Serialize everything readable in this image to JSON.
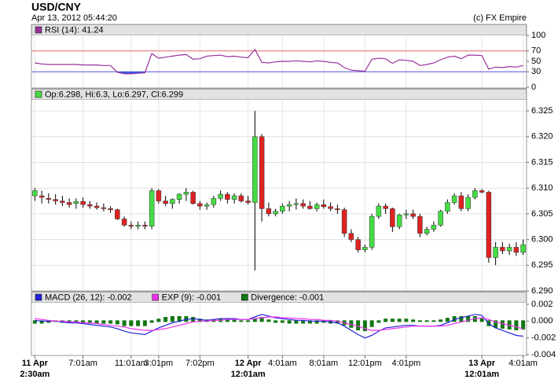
{
  "header": {
    "title": "USD/CNY",
    "subtitle": "Apr 13, 2012 05:44:20",
    "credit": "(c) FX Empire"
  },
  "chart_data": [
    {
      "type": "line",
      "series": [
        {
          "name": "RSI (14): 41.24",
          "color": "#993399",
          "values": [
            47,
            45,
            44,
            44,
            44,
            44,
            44,
            43,
            43,
            43,
            42,
            42,
            29,
            26,
            26,
            27,
            28,
            65,
            56,
            58,
            60,
            62,
            63,
            54,
            55,
            60,
            61,
            62,
            59,
            60,
            58,
            57,
            73,
            48,
            47,
            49,
            50,
            50,
            51,
            50,
            49,
            51,
            50,
            48,
            47,
            38,
            33,
            32,
            31,
            54,
            56,
            55,
            46,
            53,
            52,
            50,
            42,
            44,
            47,
            53,
            58,
            60,
            55,
            62,
            62,
            61,
            35,
            39,
            38,
            40,
            39,
            42
          ]
        }
      ],
      "ylim": [
        0,
        100
      ],
      "yticks": [
        0,
        30,
        50,
        70,
        100
      ],
      "ref_lines": [
        {
          "value": 70,
          "color": "#e06666"
        },
        {
          "value": 30,
          "color": "#5555dd",
          "fill": "#3355ee"
        }
      ]
    },
    {
      "type": "candlestick",
      "series": [
        {
          "name": "Op:6.298, Hi:6.3, Lo:6.297, Cl:6.299",
          "color": "#44dd44",
          "values": [
            [
              6.3085,
              6.31,
              6.3075,
              6.3095
            ],
            [
              6.3085,
              6.3095,
              6.307,
              6.3082
            ],
            [
              6.308,
              6.309,
              6.307,
              6.3078
            ],
            [
              6.3078,
              6.3088,
              6.3068,
              6.3075
            ],
            [
              6.3075,
              6.3085,
              6.3065,
              6.3072
            ],
            [
              6.3072,
              6.308,
              6.3062,
              6.3068
            ],
            [
              6.307,
              6.308,
              6.306,
              6.3074
            ],
            [
              6.3074,
              6.3082,
              6.3062,
              6.3068
            ],
            [
              6.3068,
              6.3075,
              6.306,
              6.3065
            ],
            [
              6.3065,
              6.3072,
              6.3058,
              6.3062
            ],
            [
              6.3062,
              6.307,
              6.3055,
              6.306
            ],
            [
              6.306,
              6.3065,
              6.3052,
              6.3058
            ],
            [
              6.3058,
              6.306,
              6.3038,
              6.304
            ],
            [
              6.304,
              6.3045,
              6.3025,
              6.3028
            ],
            [
              6.3028,
              6.3035,
              6.302,
              6.3026
            ],
            [
              6.3026,
              6.3035,
              6.302,
              6.3028
            ],
            [
              6.3028,
              6.3035,
              6.302,
              6.3026
            ],
            [
              6.3026,
              6.31,
              6.302,
              6.3095
            ],
            [
              6.3095,
              6.3098,
              6.307,
              6.3075
            ],
            [
              6.3075,
              6.3085,
              6.3065,
              6.307
            ],
            [
              6.307,
              6.308,
              6.306,
              6.3078
            ],
            [
              6.3078,
              6.309,
              6.307,
              6.3088
            ],
            [
              6.3088,
              6.31,
              6.3075,
              6.3092
            ],
            [
              6.3092,
              6.3095,
              6.3068,
              6.307
            ],
            [
              6.307,
              6.3075,
              6.3058,
              6.3065
            ],
            [
              6.3065,
              6.3072,
              6.3058,
              6.3068
            ],
            [
              6.3068,
              6.3085,
              6.3062,
              6.308
            ],
            [
              6.308,
              6.3095,
              6.3075,
              6.3088
            ],
            [
              6.3088,
              6.3092,
              6.307,
              6.3078
            ],
            [
              6.3078,
              6.309,
              6.307,
              6.3085
            ],
            [
              6.3085,
              6.309,
              6.3072,
              6.3075
            ],
            [
              6.3075,
              6.3085,
              6.3068,
              6.3072
            ],
            [
              6.3072,
              6.325,
              6.294,
              6.32
            ],
            [
              6.32,
              6.3205,
              6.3035,
              6.306
            ],
            [
              6.306,
              6.3072,
              6.3045,
              6.305
            ],
            [
              6.305,
              6.306,
              6.3045,
              6.3055
            ],
            [
              6.3055,
              6.307,
              6.305,
              6.3065
            ],
            [
              6.3065,
              6.3075,
              6.3055,
              6.3068
            ],
            [
              6.3068,
              6.308,
              6.3058,
              6.307
            ],
            [
              6.307,
              6.3078,
              6.306,
              6.3065
            ],
            [
              6.3065,
              6.3075,
              6.3058,
              6.306
            ],
            [
              6.306,
              6.3072,
              6.3055,
              6.3068
            ],
            [
              6.3068,
              6.3078,
              6.306,
              6.3064
            ],
            [
              6.3064,
              6.3072,
              6.3055,
              6.306
            ],
            [
              6.306,
              6.3068,
              6.305,
              6.3058
            ],
            [
              6.3058,
              6.3062,
              6.3005,
              6.3012
            ],
            [
              6.3012,
              6.302,
              6.2995,
              6.3
            ],
            [
              6.3,
              6.3005,
              6.2975,
              6.298
            ],
            [
              6.298,
              6.299,
              6.2975,
              6.2985
            ],
            [
              6.2985,
              6.305,
              6.298,
              6.3045
            ],
            [
              6.3045,
              6.307,
              6.304,
              6.3065
            ],
            [
              6.3065,
              6.307,
              6.305,
              6.306
            ],
            [
              6.306,
              6.3062,
              6.3015,
              6.3025
            ],
            [
              6.3025,
              6.305,
              6.302,
              6.3048
            ],
            [
              6.3048,
              6.3058,
              6.304,
              6.305
            ],
            [
              6.305,
              6.3058,
              6.304,
              6.3045
            ],
            [
              6.3045,
              6.305,
              6.3005,
              6.3012
            ],
            [
              6.3012,
              6.3025,
              6.3008,
              6.302
            ],
            [
              6.302,
              6.3035,
              6.3015,
              6.3028
            ],
            [
              6.3028,
              6.3058,
              6.3025,
              6.3055
            ],
            [
              6.3055,
              6.3078,
              6.305,
              6.3072
            ],
            [
              6.3072,
              6.309,
              6.3068,
              6.3085
            ],
            [
              6.3085,
              6.3092,
              6.3055,
              6.306
            ],
            [
              6.306,
              6.3088,
              6.3055,
              6.3082
            ],
            [
              6.3082,
              6.31,
              6.3078,
              6.3095
            ],
            [
              6.3095,
              6.3098,
              6.309,
              6.3092
            ],
            [
              6.3092,
              6.3095,
              6.2955,
              6.2965
            ],
            [
              6.2965,
              6.2995,
              6.295,
              6.2985
            ],
            [
              6.2985,
              6.2995,
              6.2972,
              6.2978
            ],
            [
              6.2978,
              6.2992,
              6.297,
              6.2985
            ],
            [
              6.2985,
              6.2995,
              6.2968,
              6.2975
            ],
            [
              6.2975,
              6.3,
              6.297,
              6.299
            ]
          ]
        }
      ],
      "up_color": "#44dd44",
      "down_color": "#dd2222",
      "ylim": [
        6.29,
        6.327
      ],
      "yticks": [
        {
          "value": 6.29,
          "label": "6.290"
        },
        6.295,
        {
          "value": 6.3,
          "label": "6.300"
        },
        6.305,
        {
          "value": 6.31,
          "label": "6.310"
        },
        6.315,
        {
          "value": 6.32,
          "label": "6.320"
        },
        6.325
      ],
      "grid": true
    },
    {
      "type": "macd",
      "categories": [
        "11 Apr\n2:30am",
        null,
        null,
        null,
        null,
        null,
        null,
        "7:01am",
        null,
        null,
        null,
        null,
        null,
        null,
        "11:01am",
        null,
        null,
        null,
        "3:01pm",
        null,
        null,
        null,
        null,
        null,
        "7:02pm",
        null,
        null,
        null,
        null,
        null,
        null,
        "12 Apr\n12:01am",
        null,
        null,
        null,
        null,
        "4:01am",
        null,
        null,
        null,
        null,
        null,
        "8:01am",
        null,
        null,
        null,
        null,
        null,
        "12:01pm",
        null,
        null,
        null,
        null,
        null,
        "4:01pm",
        null,
        null,
        null,
        null,
        null,
        null,
        null,
        null,
        null,
        null,
        "13 Apr\n12:01am",
        null,
        null,
        null,
        null,
        null,
        "4:01am"
      ],
      "series": [
        {
          "name": "MACD (26, 12): -0.002",
          "color": "#2222dd",
          "style": "line",
          "values": [
            0.0001,
            0,
            0,
            0,
            -0.0001,
            -0.0002,
            -0.0002,
            -0.0003,
            -0.0004,
            -0.0005,
            -0.0006,
            -0.0007,
            -0.0009,
            -0.0012,
            -0.0014,
            -0.0015,
            -0.0016,
            -0.0012,
            -0.0008,
            -0.0005,
            -0.0002,
            0,
            0.0002,
            0.0003,
            0.0002,
            0.0001,
            0.0002,
            0.0003,
            0.0003,
            0.0003,
            0.0002,
            0.0002,
            0.0005,
            0.0008,
            0.0006,
            0.0004,
            0.0003,
            0.0002,
            0.0001,
            0.0001,
            0,
            0,
            0,
            -0.0001,
            -0.0002,
            -0.0006,
            -0.0011,
            -0.0016,
            -0.002,
            -0.0017,
            -0.0012,
            -0.0008,
            -0.0007,
            -0.0006,
            -0.0005,
            -0.0005,
            -0.0006,
            -0.0006,
            -0.0006,
            -0.0005,
            -0.0002,
            0.0002,
            0.0004,
            0.0006,
            0.0008,
            0.0007,
            -0.0003,
            -0.0008,
            -0.0011,
            -0.0014,
            -0.0017,
            -0.0018
          ]
        },
        {
          "name": "EXP (9): -0.001",
          "color": "#ee33ee",
          "style": "line",
          "values": [
            0.0003,
            0.0002,
            0.0001,
            0,
            0,
            -0.0001,
            -0.0001,
            -0.0002,
            -0.0002,
            -0.0003,
            -0.0004,
            -0.0005,
            -0.0006,
            -0.0007,
            -0.0009,
            -0.001,
            -0.0011,
            -0.0011,
            -0.001,
            -0.0009,
            -0.0007,
            -0.0005,
            -0.0003,
            -0.0001,
            0,
            0,
            0.0001,
            0.0001,
            0.0002,
            0.0002,
            0.0002,
            0.0002,
            0.0003,
            0.0004,
            0.0005,
            0.0005,
            0.0004,
            0.0004,
            0.0003,
            0.0003,
            0.0002,
            0.0002,
            0.0001,
            0.0001,
            0,
            -0.0002,
            -0.0004,
            -0.0006,
            -0.0009,
            -0.0011,
            -0.0011,
            -0.001,
            -0.0009,
            -0.0008,
            -0.0007,
            -0.0006,
            -0.0006,
            -0.0006,
            -0.0006,
            -0.0006,
            -0.0005,
            -0.0003,
            -0.0001,
            0.0001,
            0.0003,
            0.0004,
            0.0002,
            -0.0001,
            -0.0003,
            -0.0005,
            -0.0007,
            -0.0009
          ]
        },
        {
          "name": "Divergence: -0.001",
          "color": "#117711",
          "style": "bar",
          "values": [
            -0.0002,
            -0.0002,
            -0.0001,
            0,
            -0.0001,
            -0.0001,
            -0.0001,
            -0.0001,
            -0.0002,
            -0.0002,
            -0.0002,
            -0.0002,
            -0.0003,
            -0.0005,
            -0.0005,
            -0.0005,
            -0.0005,
            -0.0001,
            0.0002,
            0.0004,
            0.0005,
            0.0005,
            0.0005,
            0.0004,
            0.0002,
            0.0001,
            0.0001,
            0.0002,
            0.0001,
            0.0001,
            0,
            0,
            0.0002,
            0.0004,
            0.0001,
            -0.0001,
            -0.0001,
            -0.0002,
            -0.0002,
            -0.0002,
            -0.0002,
            -0.0002,
            -0.0001,
            -0.0002,
            -0.0002,
            -0.0004,
            -0.0007,
            -0.001,
            -0.0011,
            -0.0006,
            -0.0001,
            0.0002,
            0.0002,
            0.0002,
            0.0002,
            0.0001,
            0,
            0,
            0,
            0.0001,
            0.0003,
            0.0005,
            0.0005,
            0.0005,
            0.0005,
            0.0003,
            -0.0005,
            -0.0007,
            -0.0008,
            -0.0009,
            -0.001,
            -0.0009
          ]
        }
      ],
      "ylim": [
        -0.004,
        0.002
      ],
      "yticks": [
        -0.004,
        -0.002,
        {
          "value": 0,
          "label": "0.000"
        },
        0.002
      ]
    }
  ]
}
